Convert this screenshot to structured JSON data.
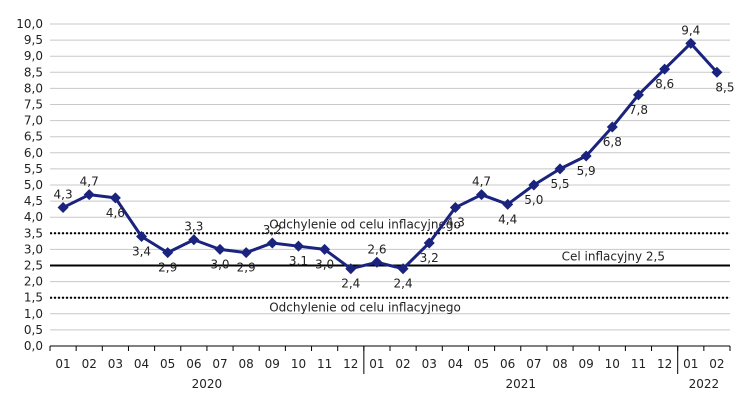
{
  "chart_data": {
    "type": "line",
    "title": "",
    "xlabel": "",
    "ylabel": "",
    "ylim": [
      0,
      10
    ],
    "y_step": 0.5,
    "y_ticks": [
      "0,0",
      "0,5",
      "1,0",
      "1,5",
      "2,0",
      "2,5",
      "3,0",
      "3,5",
      "4,0",
      "4,5",
      "5,0",
      "5,5",
      "6,0",
      "6,5",
      "7,0",
      "7,5",
      "8,0",
      "8,5",
      "9,0",
      "9,5",
      "10,0"
    ],
    "categories": [
      "01",
      "02",
      "03",
      "04",
      "05",
      "06",
      "07",
      "08",
      "09",
      "10",
      "11",
      "12",
      "01",
      "02",
      "03",
      "04",
      "05",
      "06",
      "07",
      "08",
      "09",
      "10",
      "11",
      "12",
      "01",
      "02"
    ],
    "years": [
      {
        "label": "2020",
        "start": 0,
        "end": 11
      },
      {
        "label": "2021",
        "start": 12,
        "end": 23
      },
      {
        "label": "2022",
        "start": 24,
        "end": 25
      }
    ],
    "series": [
      {
        "values": [
          4.3,
          4.7,
          4.6,
          3.4,
          2.9,
          3.3,
          3.0,
          2.9,
          3.2,
          3.1,
          3.0,
          2.4,
          2.6,
          2.4,
          3.2,
          4.3,
          4.7,
          4.4,
          5.0,
          5.5,
          5.9,
          6.8,
          7.8,
          8.6,
          9.4,
          8.5
        ],
        "labels": [
          "4,3",
          "4,7",
          "4,6",
          "3,4",
          "2,9",
          "3,3",
          "3,0",
          "2,9",
          "3,2",
          "3,1",
          "3,0",
          "2,4",
          "2,6",
          "2,4",
          "3,2",
          "4,3",
          "4,7",
          "4,4",
          "5,0",
          "5,5",
          "5,9",
          "6,8",
          "7,8",
          "8,6",
          "9,4",
          "8,5"
        ],
        "color": "#1a237e"
      }
    ],
    "reference_lines": [
      {
        "value": 2.5,
        "style": "solid",
        "label": "Cel inflacyjny 2,5",
        "label_align": "right"
      },
      {
        "value": 3.5,
        "style": "dotted",
        "label": "Odchylenie od celu inflacyjnego",
        "label_align": "center"
      },
      {
        "value": 1.5,
        "style": "dotted",
        "label": "Odchylenie od celu inflacyjnego",
        "label_align": "center"
      }
    ],
    "grid": true,
    "legend": "none"
  }
}
